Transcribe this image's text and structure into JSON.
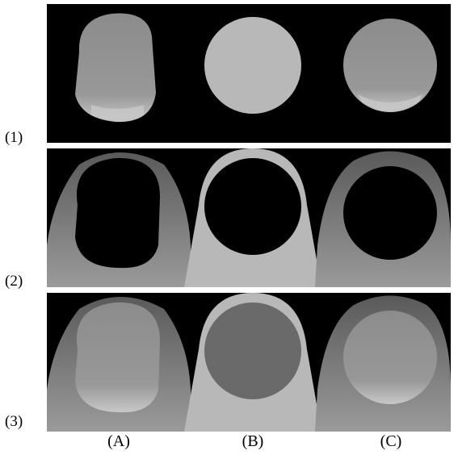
{
  "rows": [
    {
      "label": "(1)"
    },
    {
      "label": "(2)"
    },
    {
      "label": "(3)"
    }
  ],
  "columns": [
    {
      "label": "(A)"
    },
    {
      "label": "(B)"
    },
    {
      "label": "(C)"
    }
  ],
  "colors": {
    "background": "#000000",
    "template_gray": "#b8b8b8",
    "template_dark": "#6a6a6a",
    "skin": "#8a8a8a",
    "nail": "#9a9a9a"
  }
}
